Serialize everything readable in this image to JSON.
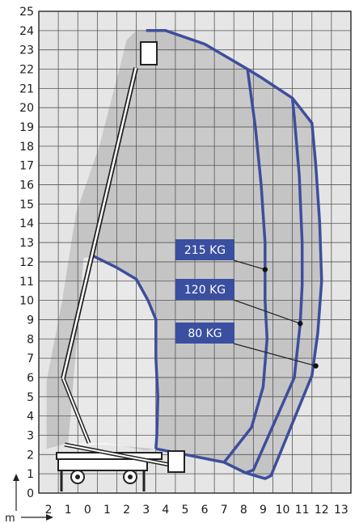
{
  "chart_data": {
    "type": "diagram",
    "y_ticks": [
      "0",
      "1",
      "2",
      "3",
      "4",
      "5",
      "6",
      "7",
      "8",
      "9",
      "10",
      "11",
      "12",
      "13",
      "14",
      "15",
      "16",
      "17",
      "18",
      "19",
      "20",
      "21",
      "22",
      "23",
      "24",
      "25"
    ],
    "x_ticks": [
      "2",
      "1",
      "0",
      "1",
      "2",
      "3",
      "4",
      "5",
      "6",
      "7",
      "8",
      "9",
      "10",
      "11",
      "12",
      "13"
    ],
    "x_unit": "m",
    "colors": {
      "envelope": "#3d4e9c",
      "label_bg": "#3a4fa0",
      "grid": "#555555",
      "shade_dark": "#aaaaaa",
      "shade_light": "#e4e4e4"
    },
    "capacities": [
      {
        "label": "215 KG",
        "outline": [
          [
            3.5,
            2.3
          ],
          [
            7.0,
            1.6
          ],
          [
            8.4,
            3.4
          ],
          [
            9.0,
            5.5
          ],
          [
            9.2,
            8.0
          ],
          [
            9.1,
            10.0
          ],
          [
            9.1,
            13.0
          ],
          [
            8.9,
            16.0
          ],
          [
            8.6,
            19.0
          ],
          [
            8.2,
            22.0
          ]
        ],
        "marker": [
          9.1,
          11.6
        ]
      },
      {
        "label": "120 KG",
        "outline": [
          [
            7.0,
            1.6
          ],
          [
            8.1,
            1.05
          ],
          [
            8.5,
            1.2
          ],
          [
            10.6,
            6.0
          ],
          [
            10.9,
            8.8
          ],
          [
            11.0,
            10.8
          ],
          [
            11.0,
            13.0
          ],
          [
            10.85,
            16.5
          ],
          [
            10.6,
            19.5
          ],
          [
            10.5,
            20.5
          ]
        ],
        "marker": [
          10.9,
          8.8
        ]
      },
      {
        "label": "80 KG",
        "outline": [
          [
            8.1,
            1.05
          ],
          [
            9.1,
            0.75
          ],
          [
            9.4,
            0.9
          ],
          [
            11.5,
            6.1
          ],
          [
            11.8,
            8.3
          ],
          [
            12.0,
            11.0
          ],
          [
            11.9,
            14.0
          ],
          [
            11.7,
            17.0
          ],
          [
            11.5,
            19.2
          ],
          [
            10.5,
            20.5
          ],
          [
            9.0,
            21.5
          ],
          [
            8.2,
            22.0
          ],
          [
            6.0,
            23.3
          ],
          [
            4.0,
            24.0
          ],
          [
            3.0,
            24.0
          ]
        ],
        "marker": [
          11.7,
          6.6
        ]
      }
    ],
    "inner_outline": [
      [
        0.3,
        12.3
      ],
      [
        1.5,
        11.7
      ],
      [
        2.5,
        11.1
      ],
      [
        3.1,
        10.0
      ],
      [
        3.5,
        9.0
      ],
      [
        3.5,
        7.0
      ],
      [
        3.6,
        5.0
      ],
      [
        3.55,
        3.0
      ],
      [
        3.5,
        2.3
      ]
    ],
    "outer_shade": [
      [
        3.0,
        24.0
      ],
      [
        4.0,
        24.0
      ],
      [
        6.0,
        23.3
      ],
      [
        8.2,
        22.0
      ],
      [
        9.0,
        21.5
      ],
      [
        10.5,
        20.5
      ],
      [
        11.5,
        19.2
      ],
      [
        11.7,
        17.0
      ],
      [
        11.9,
        14.0
      ],
      [
        12.0,
        11.0
      ],
      [
        11.8,
        8.3
      ],
      [
        11.5,
        6.1
      ],
      [
        9.4,
        0.9
      ],
      [
        9.1,
        0.75
      ],
      [
        8.1,
        1.05
      ],
      [
        7.0,
        1.6
      ],
      [
        3.5,
        2.3
      ],
      [
        3.0,
        2.2
      ],
      [
        1.0,
        2.6
      ],
      [
        -1.0,
        2.6
      ],
      [
        -2.1,
        2.3
      ],
      [
        -2.1,
        5.8
      ],
      [
        -1.3,
        10.0
      ],
      [
        -0.6,
        14.5
      ],
      [
        0.6,
        18.0
      ],
      [
        1.5,
        21.5
      ],
      [
        2.0,
        23.5
      ],
      [
        2.5,
        24.0
      ]
    ],
    "inner_shade": [
      [
        -0.2,
        12.2
      ],
      [
        0.3,
        12.3
      ],
      [
        1.5,
        11.7
      ],
      [
        2.5,
        11.1
      ],
      [
        3.1,
        10.0
      ],
      [
        3.5,
        9.0
      ],
      [
        3.5,
        7.0
      ],
      [
        3.6,
        5.0
      ],
      [
        3.55,
        3.0
      ],
      [
        3.5,
        2.3
      ],
      [
        1.0,
        2.5
      ],
      [
        -1.0,
        2.5
      ]
    ]
  }
}
